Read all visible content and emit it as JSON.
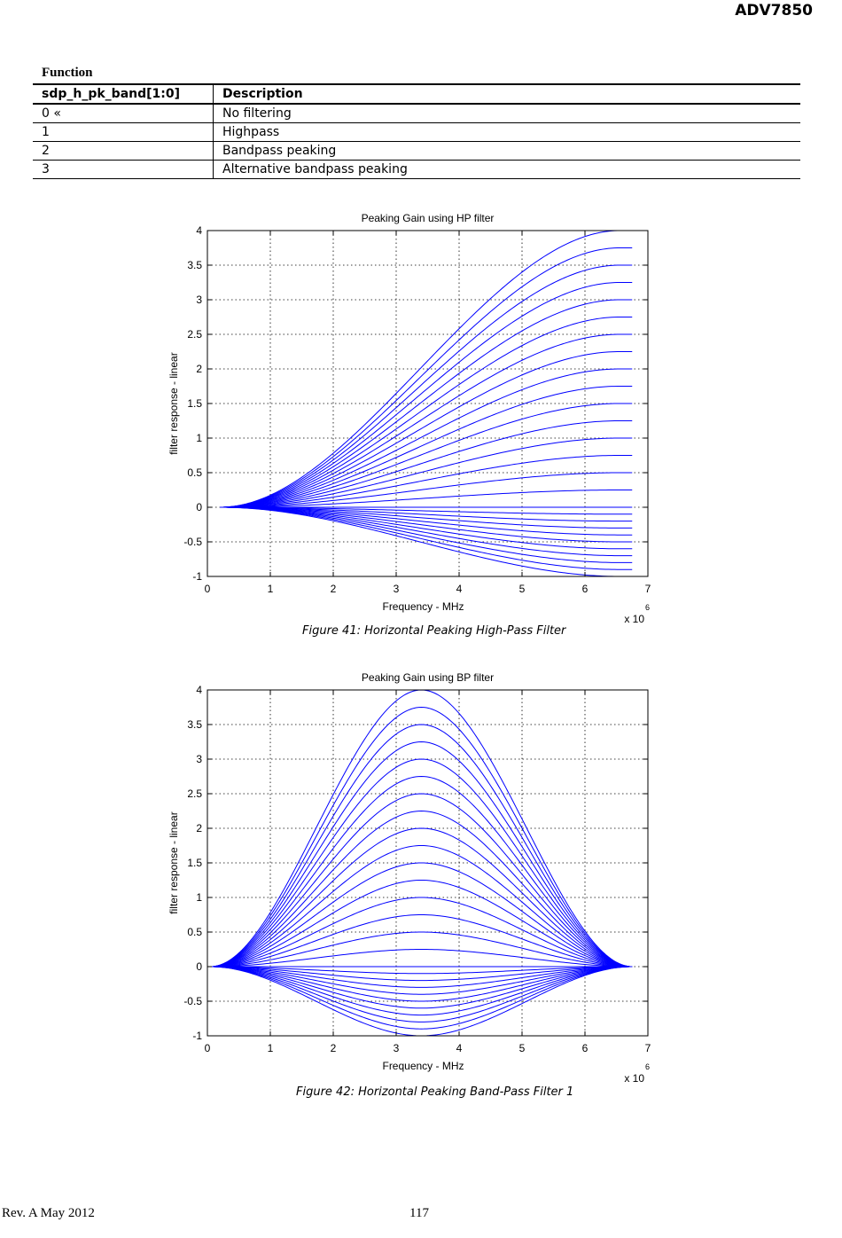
{
  "header": {
    "title": "ADV7850"
  },
  "function_heading": "Function",
  "register_table": {
    "columns": [
      "sdp_h_pk_band[1:0]",
      "Description"
    ],
    "rows": [
      [
        "0 «",
        "No filtering"
      ],
      [
        "1",
        "Highpass"
      ],
      [
        "2",
        "Bandpass peaking"
      ],
      [
        "3",
        "Alternative bandpass peaking"
      ]
    ]
  },
  "chart_data": [
    {
      "type": "line",
      "title": "Peaking Gain using HP filter",
      "xlabel": "Frequency - MHz",
      "ylabel": "filter response - linear",
      "x_multiplier": {
        "base": "x 10",
        "exponent": "6"
      },
      "xlim": [
        0,
        7
      ],
      "ylim": [
        -1,
        4
      ],
      "x_ticks": [
        "0",
        "1",
        "2",
        "3",
        "4",
        "5",
        "6",
        "7"
      ],
      "y_ticks": [
        "-1",
        "-0.5",
        "0",
        "0.5",
        "1",
        "1.5",
        "2",
        "2.5",
        "3",
        "3.5",
        "4"
      ],
      "grid": true,
      "line_color": "#0000ff",
      "x_range_data": [
        0.2,
        6.75
      ],
      "curve_shape": "high-pass: each curve rises from 0 near x=0.2 and plateaus at its gain level near x=6.75",
      "series_end_gains": [
        -1.0,
        -0.9,
        -0.8,
        -0.7,
        -0.6,
        -0.5,
        -0.4,
        -0.3,
        -0.2,
        -0.1,
        0.0,
        0.25,
        0.5,
        0.75,
        1.0,
        1.25,
        1.5,
        1.75,
        2.0,
        2.25,
        2.5,
        2.75,
        3.0,
        3.25,
        3.5,
        3.75,
        4.0
      ],
      "caption": "Figure 41: Horizontal Peaking High-Pass Filter"
    },
    {
      "type": "line",
      "title": "Peaking Gain using BP filter",
      "xlabel": "Frequency - MHz",
      "ylabel": "filter response - linear",
      "x_multiplier": {
        "base": "x 10",
        "exponent": "6"
      },
      "xlim": [
        0,
        7
      ],
      "ylim": [
        -1,
        4
      ],
      "x_ticks": [
        "0",
        "1",
        "2",
        "3",
        "4",
        "5",
        "6",
        "7"
      ],
      "y_ticks": [
        "-1",
        "-0.5",
        "0",
        "0.5",
        "1",
        "1.5",
        "2",
        "2.5",
        "3",
        "3.5",
        "4"
      ],
      "grid": true,
      "line_color": "#0000ff",
      "x_range_data": [
        0.05,
        6.75
      ],
      "center_frequency": 3.4,
      "curve_shape": "band-pass: each curve is a bell peaking at x=3.4 and returning to 0 at both ends",
      "series_peak_gains": [
        -1.0,
        -0.9,
        -0.8,
        -0.7,
        -0.6,
        -0.5,
        -0.4,
        -0.3,
        -0.2,
        -0.1,
        0.0,
        0.25,
        0.5,
        0.75,
        1.0,
        1.25,
        1.5,
        1.75,
        2.0,
        2.25,
        2.5,
        2.75,
        3.0,
        3.25,
        3.5,
        3.75,
        4.0
      ],
      "caption": "Figure 42: Horizontal Peaking Band-Pass Filter 1"
    }
  ],
  "footer": {
    "revision": "Rev. A May 2012",
    "page_number": "117"
  }
}
